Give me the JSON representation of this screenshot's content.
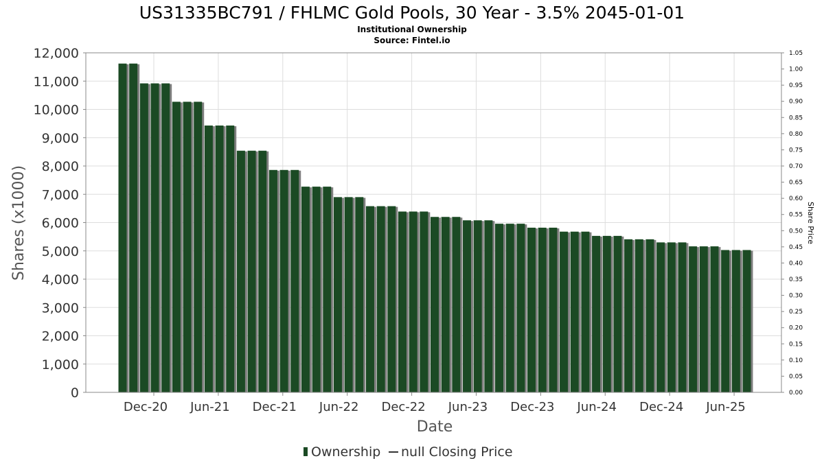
{
  "chart_data": {
    "type": "bar",
    "title": "US31335BC791 / FHLMC Gold Pools, 30 Year - 3.5% 2045-01-01",
    "subtitle": "Institutional Ownership",
    "source": "Source: Fintel.io",
    "xlabel": "Date",
    "ylabel": "Shares (x1000)",
    "y2label": "Share Price",
    "ylim": [
      0,
      12000
    ],
    "y2lim": [
      0,
      1.05
    ],
    "grid": true,
    "legend_position": "bottom-center",
    "x_tick_labels": [
      "Dec-20",
      "Jun-21",
      "Dec-21",
      "Jun-22",
      "Dec-22",
      "Jun-23",
      "Dec-23",
      "Jun-24",
      "Dec-24",
      "Jun-25"
    ],
    "y_tick_labels": [
      "0",
      "1,000",
      "2,000",
      "3,000",
      "4,000",
      "5,000",
      "6,000",
      "7,000",
      "8,000",
      "9,000",
      "10,000",
      "11,000",
      "12,000"
    ],
    "y2_tick_labels": [
      "0.00",
      "0.05",
      "0.10",
      "0.15",
      "0.20",
      "0.25",
      "0.30",
      "0.35",
      "0.40",
      "0.45",
      "0.50",
      "0.55",
      "0.60",
      "0.65",
      "0.70",
      "0.75",
      "0.80",
      "0.85",
      "0.90",
      "0.95",
      "1.00",
      "1.05"
    ],
    "colors": {
      "bar": "#1b4a24",
      "bar_shadow": "#7f7f7f",
      "grid": "#dddddd",
      "axis": "#888888"
    },
    "series": [
      {
        "name": "Ownership",
        "values": [
          11620,
          11620,
          10920,
          10920,
          10920,
          10270,
          10270,
          10270,
          9430,
          9430,
          9430,
          8540,
          8540,
          8540,
          7860,
          7860,
          7860,
          7270,
          7270,
          7270,
          6900,
          6900,
          6900,
          6580,
          6580,
          6580,
          6390,
          6390,
          6390,
          6200,
          6200,
          6200,
          6080,
          6080,
          6080,
          5960,
          5960,
          5960,
          5820,
          5820,
          5820,
          5680,
          5680,
          5680,
          5530,
          5530,
          5530,
          5410,
          5410,
          5410,
          5300,
          5300,
          5300,
          5160,
          5160,
          5160,
          5030,
          5030,
          5030
        ]
      }
    ],
    "legend": [
      {
        "label": "Ownership",
        "symbol": "bar"
      },
      {
        "label": "null Closing Price",
        "symbol": "line"
      }
    ]
  }
}
